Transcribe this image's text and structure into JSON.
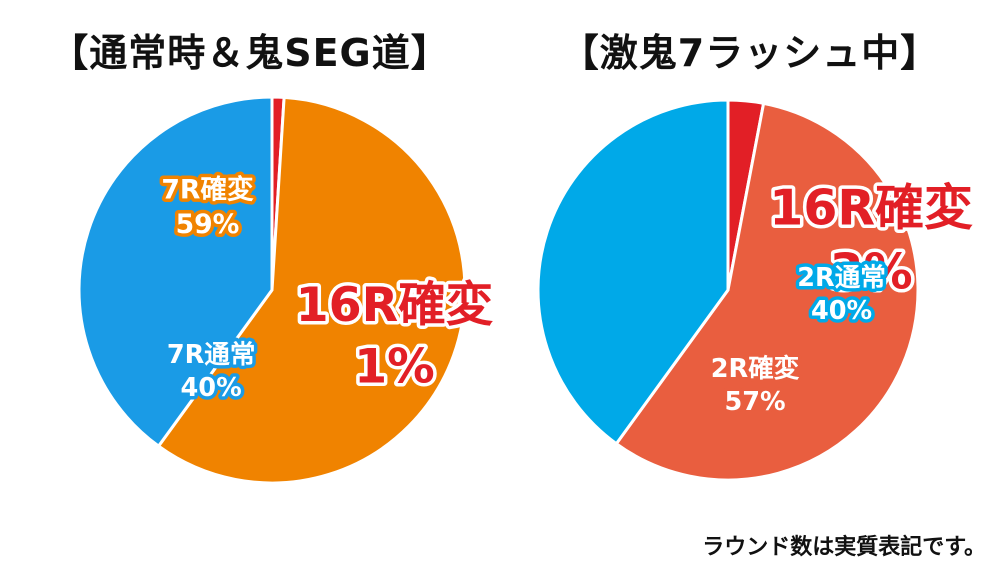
{
  "footnote": "ラウンド数は実質表記です。",
  "chart_data": [
    {
      "type": "pie",
      "title": "【通常時＆鬼SEG道】",
      "slices": [
        {
          "label": "16R確変",
          "value": 1,
          "display": "1%",
          "color": "#e21f26"
        },
        {
          "label": "7R確変",
          "value": 59,
          "display": "59%",
          "color": "#f08300"
        },
        {
          "label": "7R通常",
          "value": 40,
          "display": "40%",
          "color": "#1a9be6"
        }
      ]
    },
    {
      "type": "pie",
      "title": "【激鬼7ラッシュ中】",
      "slices": [
        {
          "label": "16R確変",
          "value": 3,
          "display": "3%",
          "color": "#e21f26"
        },
        {
          "label": "2R確変",
          "value": 57,
          "display": "57%",
          "color": "#e95e3f"
        },
        {
          "label": "2R通常",
          "value": 40,
          "display": "40%",
          "color": "#00a9e8"
        }
      ]
    }
  ]
}
